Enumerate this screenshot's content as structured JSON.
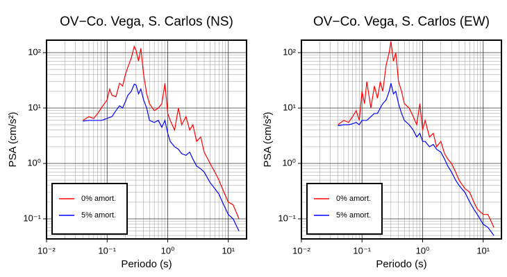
{
  "chart_data": [
    {
      "type": "line",
      "title": "OV−Co. Vega, S. Carlos (NS)",
      "x_label": "Periodo (s)",
      "y_label": "PSA (cm/s²)",
      "log_x": true,
      "log_y": true,
      "grid": true,
      "legend": "lower left",
      "xlim": [
        0.01,
        20
      ],
      "ylim": [
        0.0434,
        168
      ],
      "xticks": [
        {
          "value": 0.01,
          "label": "10⁻²"
        },
        {
          "value": 0.1,
          "label": "10⁻¹"
        },
        {
          "value": 1,
          "label": "10⁰"
        },
        {
          "value": 10,
          "label": "10¹"
        }
      ],
      "yticks": [
        {
          "value": 0.1,
          "label": "10⁻¹"
        },
        {
          "value": 1,
          "label": "10⁰"
        },
        {
          "value": 10,
          "label": "10¹"
        },
        {
          "value": 100,
          "label": "10²"
        }
      ],
      "x": [
        0.04,
        0.05,
        0.06,
        0.07,
        0.08,
        0.09,
        0.1,
        0.11,
        0.12,
        0.14,
        0.16,
        0.18,
        0.2,
        0.22,
        0.25,
        0.28,
        0.3,
        0.33,
        0.36,
        0.4,
        0.45,
        0.5,
        0.6,
        0.7,
        0.8,
        0.9,
        1,
        1.1,
        1.3,
        1.5,
        1.7,
        2,
        2.3,
        2.6,
        3,
        3.5,
        4,
        5,
        6,
        7,
        8,
        10,
        12,
        15
      ],
      "series": [
        {
          "name": "0% amort.",
          "color": "#ff0000",
          "values": [
            6,
            7,
            6.5,
            8,
            10,
            12,
            14,
            22,
            17,
            16,
            28,
            25,
            40,
            55,
            80,
            130,
            110,
            70,
            120,
            40,
            18,
            12,
            9,
            10,
            12,
            28,
            8,
            6,
            4,
            10,
            5,
            7,
            4,
            5,
            2.5,
            3,
            1.6,
            1,
            0.7,
            0.5,
            0.35,
            0.2,
            0.18,
            0.1
          ]
        },
        {
          "name": "5% amort.",
          "color": "#0000ff",
          "values": [
            5.8,
            6,
            6,
            6,
            6,
            6.2,
            6.5,
            6.8,
            7,
            9,
            11,
            10,
            13,
            17,
            20,
            27,
            26,
            18,
            22,
            14,
            10,
            6,
            5.5,
            6,
            4.5,
            6,
            3.5,
            2.5,
            2,
            1.8,
            1.5,
            1.4,
            1.6,
            1.2,
            0.9,
            0.8,
            0.7,
            0.45,
            0.35,
            0.28,
            0.2,
            0.12,
            0.1,
            0.06
          ]
        }
      ]
    },
    {
      "type": "line",
      "title": "OV−Co. Vega, S. Carlos (EW)",
      "x_label": "Periodo (s)",
      "y_label": "PSA (cm/s²)",
      "log_x": true,
      "log_y": true,
      "grid": true,
      "legend": "lower left",
      "xlim": [
        0.01,
        20
      ],
      "ylim": [
        0.0434,
        168
      ],
      "xticks": [
        {
          "value": 0.01,
          "label": "10⁻²"
        },
        {
          "value": 0.1,
          "label": "10⁻¹"
        },
        {
          "value": 1,
          "label": "10⁰"
        },
        {
          "value": 10,
          "label": "10¹"
        }
      ],
      "yticks": [
        {
          "value": 0.1,
          "label": "10⁻¹"
        },
        {
          "value": 1,
          "label": "10⁰"
        },
        {
          "value": 10,
          "label": "10¹"
        },
        {
          "value": 100,
          "label": "10²"
        }
      ],
      "x": [
        0.04,
        0.05,
        0.06,
        0.07,
        0.08,
        0.09,
        0.1,
        0.11,
        0.12,
        0.14,
        0.16,
        0.18,
        0.2,
        0.22,
        0.25,
        0.28,
        0.3,
        0.33,
        0.36,
        0.4,
        0.45,
        0.5,
        0.6,
        0.7,
        0.8,
        0.9,
        1,
        1.1,
        1.3,
        1.5,
        1.7,
        2,
        2.3,
        2.6,
        3,
        3.5,
        4,
        5,
        6,
        7,
        8,
        10,
        12,
        15
      ],
      "series": [
        {
          "name": "0% amort.",
          "color": "#ff0000",
          "values": [
            5,
            6,
            5.5,
            7,
            9,
            6,
            20,
            12,
            30,
            10,
            25,
            15,
            30,
            20,
            60,
            100,
            160,
            70,
            100,
            30,
            20,
            12,
            10,
            7,
            5,
            12,
            4,
            6,
            3,
            3.5,
            2,
            2.5,
            1.5,
            1.2,
            1,
            0.7,
            0.5,
            0.35,
            0.3,
            0.2,
            0.15,
            0.12,
            0.12,
            0.07
          ]
        },
        {
          "name": "5% amort.",
          "color": "#0000ff",
          "values": [
            4.8,
            5,
            5,
            5.2,
            5.5,
            5,
            6,
            6,
            6,
            7,
            8,
            8,
            10,
            12,
            14,
            20,
            28,
            18,
            20,
            12,
            8,
            6,
            5,
            4,
            3,
            3.5,
            2.5,
            2.5,
            2,
            2.2,
            1.8,
            1.6,
            1.2,
            0.9,
            0.7,
            0.5,
            0.4,
            0.3,
            0.2,
            0.15,
            0.12,
            0.08,
            0.07,
            0.05
          ]
        }
      ]
    }
  ]
}
